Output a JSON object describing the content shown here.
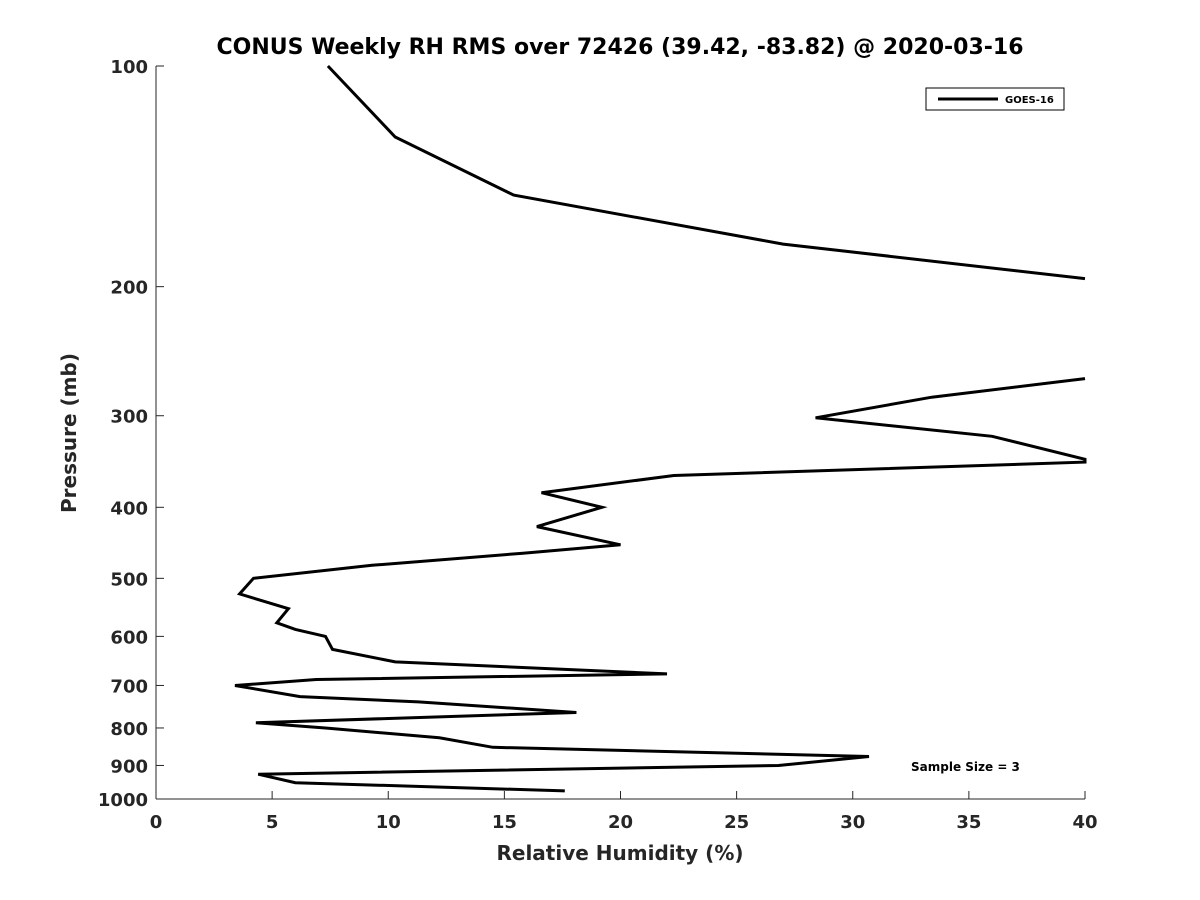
{
  "chart_data": {
    "type": "line",
    "title": "CONUS Weekly RH RMS over 72426 (39.42, -83.82) @ 2020-03-16",
    "xlabel": "Relative Humidity (%)",
    "ylabel": "Pressure (mb)",
    "xlim": [
      0,
      40
    ],
    "ylim": [
      100,
      1000
    ],
    "y_scale": "log",
    "y_inverted": true,
    "grid": false,
    "legend_position": "top-right",
    "x_ticks": [
      "0",
      "5",
      "10",
      "15",
      "20",
      "25",
      "30",
      "35",
      "40"
    ],
    "x_tick_values": [
      0,
      5,
      10,
      15,
      20,
      25,
      30,
      35,
      40
    ],
    "y_ticks": [
      "100",
      "200",
      "300",
      "400",
      "500",
      "600",
      "700",
      "800",
      "900",
      "1000"
    ],
    "y_tick_values": [
      100,
      200,
      300,
      400,
      500,
      600,
      700,
      800,
      900,
      1000
    ],
    "annotation": "Sample Size = 3",
    "series": [
      {
        "name": "GOES-16",
        "color": "#000000",
        "points": [
          [
            7.4,
            100
          ],
          [
            10.3,
            125
          ],
          [
            15.4,
            150
          ],
          [
            27.0,
            175
          ],
          [
            40,
            195
          ],
          [
            null,
            null
          ],
          [
            40,
            267
          ],
          [
            33.4,
            283
          ],
          [
            28.4,
            302
          ],
          [
            36.0,
            320
          ],
          [
            40,
            344
          ],
          [
            40,
            347
          ],
          [
            22.3,
            362
          ],
          [
            16.6,
            382
          ],
          [
            19.2,
            400
          ],
          [
            16.4,
            425
          ],
          [
            20.0,
            450
          ],
          [
            15.8,
            462
          ],
          [
            9.3,
            480
          ],
          [
            4.2,
            500
          ],
          [
            3.6,
            525
          ],
          [
            5.7,
            550
          ],
          [
            5.2,
            575
          ],
          [
            6.0,
            587
          ],
          [
            7.3,
            600
          ],
          [
            7.6,
            625
          ],
          [
            10.3,
            650
          ],
          [
            22.0,
            675
          ],
          [
            6.9,
            687
          ],
          [
            3.4,
            700
          ],
          [
            6.2,
            725
          ],
          [
            11.3,
            737
          ],
          [
            18.1,
            762
          ],
          [
            4.3,
            787
          ],
          [
            7.3,
            800
          ],
          [
            12.2,
            825
          ],
          [
            14.5,
            850
          ],
          [
            30.7,
            875
          ],
          [
            26.8,
            900
          ],
          [
            4.4,
            925
          ],
          [
            6.0,
            950
          ],
          [
            17.6,
            975
          ]
        ]
      }
    ]
  }
}
